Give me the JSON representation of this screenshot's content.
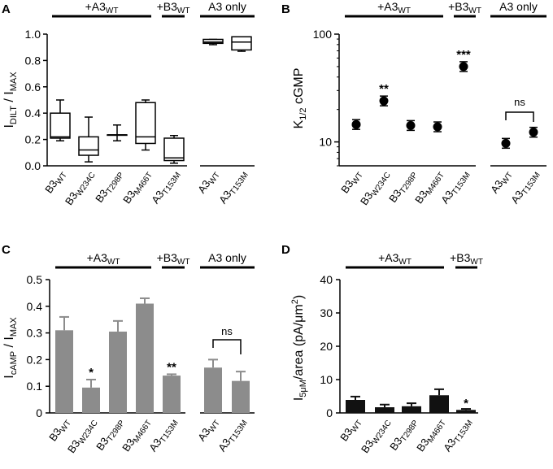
{
  "chart_data": [
    {
      "id": "A",
      "panel_label": "A",
      "type": "box",
      "ylabel": {
        "main": "I",
        "sub": "DILT",
        "rest": " / I",
        "sub2": "MAX"
      },
      "ylim": [
        0,
        1.0
      ],
      "yticks": [
        "0.0",
        "0.2",
        "0.4",
        "0.6",
        "0.8",
        "1.0"
      ],
      "group_labels": [
        {
          "main": "+A3",
          "sub": "WT"
        },
        {
          "main": "+B3",
          "sub": "WT"
        },
        {
          "main": "A3 only",
          "sub": ""
        }
      ],
      "categories": [
        {
          "main": "B3",
          "sub": "WT"
        },
        {
          "main": "B3",
          "sub": "W234C"
        },
        {
          "main": "B3",
          "sub": "T298P"
        },
        {
          "main": "B3",
          "sub": "M466T"
        },
        {
          "main": "A3",
          "sub": "T153M"
        },
        {
          "main": "A3",
          "sub": "WT"
        },
        {
          "main": "A3",
          "sub": "T153M"
        }
      ],
      "boxes": [
        {
          "min": 0.19,
          "q1": 0.21,
          "median": 0.22,
          "q3": 0.4,
          "max": 0.5
        },
        {
          "min": 0.03,
          "q1": 0.08,
          "median": 0.12,
          "q3": 0.22,
          "max": 0.37
        },
        {
          "min": 0.19,
          "q1": 0.235,
          "median": 0.235,
          "q3": 0.235,
          "max": 0.31
        },
        {
          "min": 0.12,
          "q1": 0.17,
          "median": 0.22,
          "q3": 0.48,
          "max": 0.5
        },
        {
          "min": 0.02,
          "q1": 0.04,
          "median": 0.06,
          "q3": 0.21,
          "max": 0.23
        },
        {
          "min": 0.92,
          "q1": 0.93,
          "median": 0.94,
          "q3": 0.96,
          "max": 0.96
        },
        {
          "min": 0.87,
          "q1": 0.88,
          "median": 0.94,
          "q3": 0.98,
          "max": 0.98
        }
      ]
    },
    {
      "id": "B",
      "panel_label": "B",
      "type": "scatter",
      "yscale": "log",
      "ylabel": {
        "main": "K",
        "sub": "1/2",
        "rest": " cGMP"
      },
      "ylim": [
        6,
        100
      ],
      "yticks": [
        10,
        100
      ],
      "ytick_labels": [
        "10",
        "100"
      ],
      "group_labels": [
        {
          "main": "+A3",
          "sub": "WT"
        },
        {
          "main": "+B3",
          "sub": "WT"
        },
        {
          "main": "A3 only",
          "sub": ""
        }
      ],
      "categories": [
        {
          "main": "B3",
          "sub": "WT"
        },
        {
          "main": "B3",
          "sub": "W234C"
        },
        {
          "main": "B3",
          "sub": "T298P"
        },
        {
          "main": "B3",
          "sub": "M466T"
        },
        {
          "main": "A3",
          "sub": "T153M"
        },
        {
          "main": "A3",
          "sub": "WT"
        },
        {
          "main": "A3",
          "sub": "T153M"
        }
      ],
      "values": [
        14.5,
        24,
        14.2,
        13.8,
        50,
        9.7,
        12.3
      ],
      "annotations": [
        "",
        "**",
        "",
        "",
        "***",
        "",
        ""
      ],
      "ns_label": "ns"
    },
    {
      "id": "C",
      "panel_label": "C",
      "type": "bar",
      "ylabel": {
        "main": "I",
        "sub": "cAMP",
        "rest": " / I",
        "sub2": "MAX"
      },
      "ylim": [
        0,
        0.5
      ],
      "yticks": [
        "0",
        "0.1",
        "0.2",
        "0.3",
        "0.4",
        "0.5"
      ],
      "group_labels": [
        {
          "main": "+A3",
          "sub": "WT"
        },
        {
          "main": "+B3",
          "sub": "WT"
        },
        {
          "main": "A3 only",
          "sub": ""
        }
      ],
      "categories": [
        {
          "main": "B3",
          "sub": "WT"
        },
        {
          "main": "B3",
          "sub": "W234C"
        },
        {
          "main": "B3",
          "sub": "T298P"
        },
        {
          "main": "B3",
          "sub": "M466T"
        },
        {
          "main": "A3",
          "sub": "T153M"
        },
        {
          "main": "A3",
          "sub": "WT"
        },
        {
          "main": "A3",
          "sub": "T153M"
        }
      ],
      "values": [
        0.31,
        0.095,
        0.305,
        0.41,
        0.14,
        0.17,
        0.12
      ],
      "errors": [
        0.05,
        0.03,
        0.04,
        0.02,
        0.005,
        0.03,
        0.035
      ],
      "annotations": [
        "",
        "*",
        "",
        "",
        "**",
        "",
        ""
      ],
      "ns_label": "ns",
      "bar_color": "#8c8c8c"
    },
    {
      "id": "D",
      "panel_label": "D",
      "type": "bar",
      "ylabel": {
        "main": "I",
        "sub": "5μM",
        "rest": "/area (pA/μm",
        "sup": "2",
        "end": ")"
      },
      "ylim": [
        0,
        40
      ],
      "yticks": [
        "0",
        "10",
        "20",
        "30",
        "40"
      ],
      "group_labels": [
        {
          "main": "+A3",
          "sub": "WT"
        },
        {
          "main": "+B3",
          "sub": "WT"
        }
      ],
      "categories": [
        {
          "main": "B3",
          "sub": "WT"
        },
        {
          "main": "B3",
          "sub": "W234C"
        },
        {
          "main": "B3",
          "sub": "T298P"
        },
        {
          "main": "B3",
          "sub": "M466T"
        },
        {
          "main": "A3",
          "sub": "T153M"
        }
      ],
      "values": [
        3.9,
        1.7,
        2.0,
        5.3,
        0.9
      ],
      "errors": [
        1.0,
        0.8,
        0.9,
        1.8,
        0.3
      ],
      "annotations": [
        "",
        "",
        "",
        "",
        "*"
      ],
      "bar_color": "#111111"
    }
  ]
}
